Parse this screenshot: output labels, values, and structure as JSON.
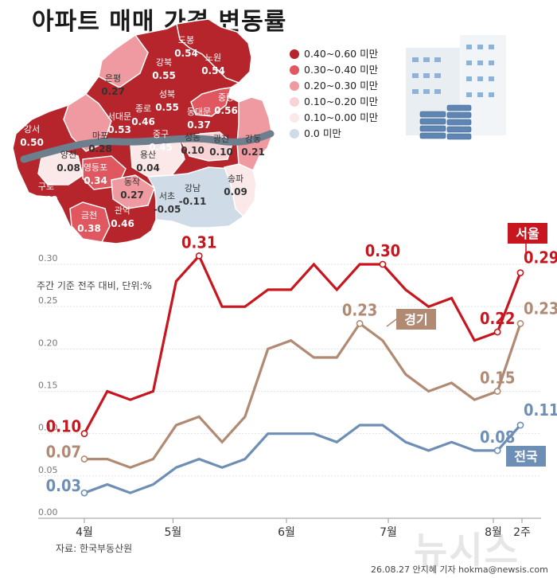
{
  "title": "아파트 매매 가격 변동률",
  "map": {
    "districts": [
      {
        "name": "도봉",
        "value": "0.54"
      },
      {
        "name": "노원",
        "value": "0.54"
      },
      {
        "name": "강북",
        "value": "0.55"
      },
      {
        "name": "은평",
        "value": "0.27"
      },
      {
        "name": "성북",
        "value": "0.55"
      },
      {
        "name": "중랑",
        "value": "0.56"
      },
      {
        "name": "종로",
        "value": "0.46"
      },
      {
        "name": "동대문",
        "value": "0.37"
      },
      {
        "name": "서대문",
        "value": "0.53"
      },
      {
        "name": "중구",
        "value": "0.45"
      },
      {
        "name": "마포",
        "value": "0.28"
      },
      {
        "name": "성동",
        "value": "0.10"
      },
      {
        "name": "광진",
        "value": "0.10"
      },
      {
        "name": "강동",
        "value": "0.21"
      },
      {
        "name": "강서",
        "value": "0.50"
      },
      {
        "name": "양천",
        "value": "0.08"
      },
      {
        "name": "용산",
        "value": "0.04"
      },
      {
        "name": "영등포",
        "value": "0.34"
      },
      {
        "name": "구로",
        "value": "0.49"
      },
      {
        "name": "동작",
        "value": "0.27"
      },
      {
        "name": "강남",
        "value": "-0.11"
      },
      {
        "name": "송파",
        "value": "0.09"
      },
      {
        "name": "서초",
        "value": "-0.05"
      },
      {
        "name": "금천",
        "value": "0.38"
      },
      {
        "name": "관악",
        "value": "0.46"
      }
    ],
    "legend": [
      {
        "label": "0.40~0.60 미만",
        "color": "#b5252b"
      },
      {
        "label": "0.30~0.40 미만",
        "color": "#e0575f"
      },
      {
        "label": "0.20~0.30 미만",
        "color": "#ef9aa0"
      },
      {
        "label": "0.10~0.20 미만",
        "color": "#f8d3d5"
      },
      {
        "label": "0.10~0.00 미만",
        "color": "#fbe9ea"
      },
      {
        "label": "0.0 미만",
        "color": "#cfdbe6"
      }
    ]
  },
  "chart_data": {
    "type": "line",
    "unit_note": "주간 기준 전주 대비, 단위:%",
    "ylim": [
      0.0,
      0.3
    ],
    "yticks": [
      "0.00",
      "0.05",
      "0.10",
      "0.15",
      "0.20",
      "0.25",
      "0.30"
    ],
    "x_month_labels": [
      "4월",
      "5월",
      "6월",
      "7월",
      "8월",
      "2주"
    ],
    "series": [
      {
        "name": "서울",
        "color": "#c8161f",
        "values": [
          0.1,
          0.15,
          0.14,
          0.15,
          0.28,
          0.31,
          0.25,
          0.25,
          0.27,
          0.27,
          0.3,
          0.27,
          0.3,
          0.3,
          0.27,
          0.25,
          0.26,
          0.21,
          0.22,
          0.29
        ],
        "labeled": [
          {
            "index": 0,
            "text": "0.10"
          },
          {
            "index": 5,
            "text": "0.31"
          },
          {
            "index": 13,
            "text": "0.30"
          },
          {
            "index": 18,
            "text": "0.22"
          },
          {
            "index": 19,
            "text": "0.29"
          }
        ]
      },
      {
        "name": "경기",
        "color": "#b08a72",
        "values": [
          0.07,
          0.07,
          0.06,
          0.07,
          0.11,
          0.12,
          0.09,
          0.12,
          0.2,
          0.21,
          0.19,
          0.19,
          0.23,
          0.21,
          0.17,
          0.15,
          0.16,
          0.14,
          0.15,
          0.23
        ],
        "labeled": [
          {
            "index": 0,
            "text": "0.07"
          },
          {
            "index": 12,
            "text": "0.23"
          },
          {
            "index": 18,
            "text": "0.15"
          },
          {
            "index": 19,
            "text": "0.23"
          }
        ]
      },
      {
        "name": "전국",
        "color": "#6e8fb5",
        "values": [
          0.03,
          0.04,
          0.03,
          0.04,
          0.06,
          0.07,
          0.06,
          0.07,
          0.1,
          0.1,
          0.1,
          0.09,
          0.11,
          0.11,
          0.09,
          0.08,
          0.09,
          0.08,
          0.08,
          0.11
        ],
        "labeled": [
          {
            "index": 0,
            "text": "0.03"
          },
          {
            "index": 18,
            "text": "0.08"
          },
          {
            "index": 19,
            "text": "0.11"
          }
        ]
      }
    ]
  },
  "source": "자료:  한국부동산원",
  "credit": "26.08.27  안지혜  기자  hokma@newsis.com",
  "watermark": "뉴시스"
}
